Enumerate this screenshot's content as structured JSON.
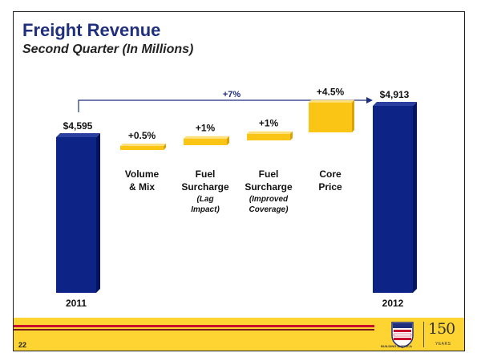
{
  "slide": {
    "title": "Freight Revenue",
    "subtitle": "Second Quarter (In Millions)",
    "page_number": "22"
  },
  "branding": {
    "shield_caption": "BUILDING AMERICA",
    "anniversary_number": "150",
    "anniversary_label": "YEARS"
  },
  "chart_data": {
    "type": "bar",
    "subtype": "waterfall",
    "title": "Freight Revenue",
    "subtitle": "Second Quarter (In Millions)",
    "start": {
      "label": "2011",
      "value": 4595,
      "value_label": "$4,595"
    },
    "end": {
      "label": "2012",
      "value": 4913,
      "value_label": "$4,913"
    },
    "changes": [
      {
        "label_lines": [
          "Volume",
          "& Mix"
        ],
        "note_lines": [],
        "pct_label": "+0.5%",
        "pct": 0.5
      },
      {
        "label_lines": [
          "Fuel",
          "Surcharge"
        ],
        "note_lines": [
          "(Lag",
          "Impact)"
        ],
        "pct_label": "+1%",
        "pct": 1
      },
      {
        "label_lines": [
          "Fuel",
          "Surcharge"
        ],
        "note_lines": [
          "(Improved",
          "Coverage)"
        ],
        "pct_label": "+1%",
        "pct": 1
      },
      {
        "label_lines": [
          "Core",
          "Price"
        ],
        "note_lines": [],
        "pct_label": "+4.5%",
        "pct": 4.5
      }
    ],
    "total_change_label": "+7%",
    "colors": {
      "total_bar": "#0d2486",
      "total_bar_side": "#061460",
      "change_bar": "#fbc515",
      "change_bar_shade": "#d9a10a",
      "arrow": "#1f2f7d",
      "text": "#111111"
    }
  }
}
